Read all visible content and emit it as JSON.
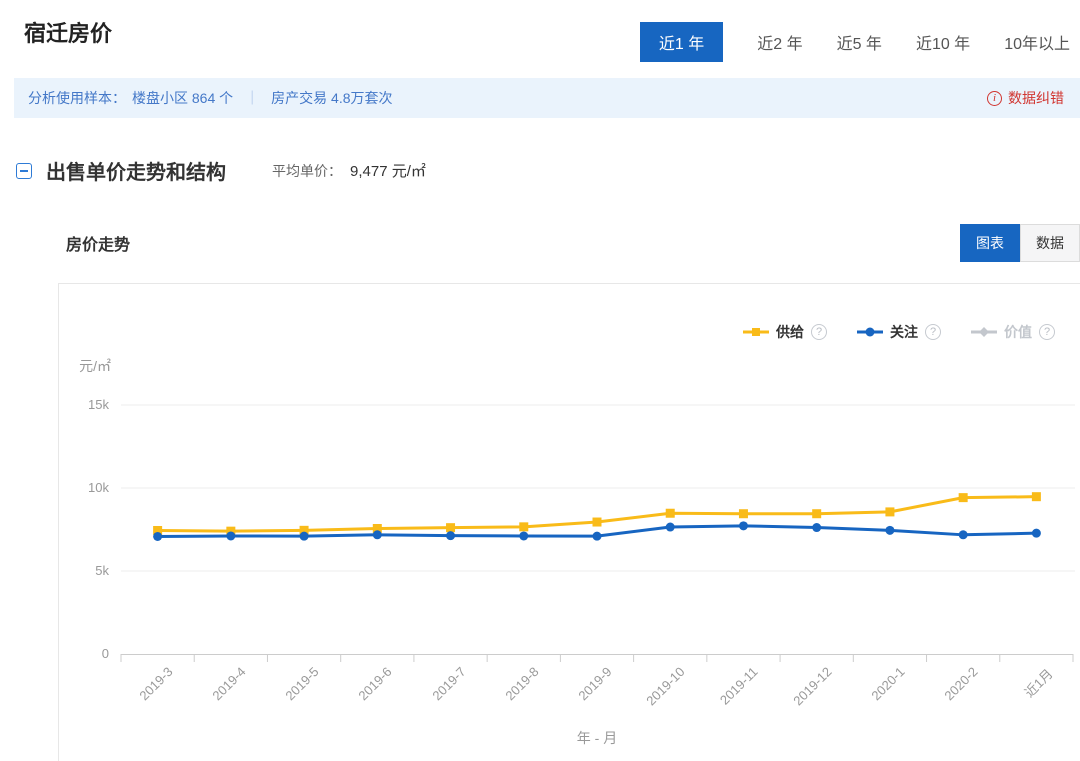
{
  "header": {
    "title": "宿迁房价",
    "time_tabs": [
      {
        "label": "近1 年",
        "active": true
      },
      {
        "label": "近2 年",
        "active": false
      },
      {
        "label": "近5 年",
        "active": false
      },
      {
        "label": "近10 年",
        "active": false
      },
      {
        "label": "10年以上",
        "active": false
      }
    ]
  },
  "info_bar": {
    "prefix": "分析使用样本：",
    "sample": "楼盘小区 864 个",
    "separator": "｜",
    "transactions": "房产交易 4.8万套次",
    "correction_label": "数据纠错"
  },
  "section": {
    "title": "出售单价走势和结构",
    "avg_price_label": "平均单价：",
    "avg_price_value": "9,477 元/㎡"
  },
  "trend": {
    "title": "房价走势",
    "view_tabs": [
      {
        "label": "图表",
        "active": true
      },
      {
        "label": "数据",
        "active": false
      }
    ]
  },
  "chart_data": {
    "type": "line",
    "title": "房价走势",
    "y_unit": "元/㎡",
    "x_title": "年 - 月",
    "categories": [
      "2019-3",
      "2019-4",
      "2019-5",
      "2019-6",
      "2019-7",
      "2019-8",
      "2019-9",
      "2019-10",
      "2019-11",
      "2019-12",
      "2020-1",
      "2020-2",
      "近1月"
    ],
    "series": [
      {
        "name": "供给",
        "color": "#F9BB19",
        "marker": "square",
        "enabled": true,
        "values": [
          7440,
          7400,
          7450,
          7560,
          7610,
          7660,
          7950,
          8480,
          8450,
          8450,
          8560,
          9420,
          9477
        ]
      },
      {
        "name": "关注",
        "color": "#1765C1",
        "marker": "circle",
        "enabled": true,
        "values": [
          7080,
          7110,
          7100,
          7180,
          7130,
          7110,
          7100,
          7650,
          7720,
          7620,
          7450,
          7180,
          7280
        ]
      },
      {
        "name": "价值",
        "color": "#C3C7CD",
        "marker": "diamond",
        "enabled": false,
        "values": []
      }
    ],
    "ylim": [
      0,
      15000
    ],
    "yticks": [
      {
        "value": 0,
        "label": "0"
      },
      {
        "value": 5000,
        "label": "5k"
      },
      {
        "value": 10000,
        "label": "10k"
      },
      {
        "value": 15000,
        "label": "15k"
      }
    ],
    "legend_position": "top-right",
    "grid": true
  }
}
